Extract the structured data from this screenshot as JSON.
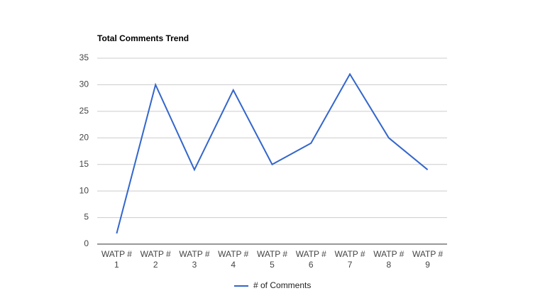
{
  "chart_data": {
    "type": "line",
    "title": "Total Comments Trend",
    "categories": [
      "WATP # 1",
      "WATP # 2",
      "WATP # 3",
      "WATP # 4",
      "WATP # 5",
      "WATP # 6",
      "WATP # 7",
      "WATP # 8",
      "WATP # 9"
    ],
    "series": [
      {
        "name": "# of Comments",
        "color": "#3366cc",
        "values": [
          2,
          30,
          14,
          29,
          15,
          19,
          32,
          20,
          14
        ]
      }
    ],
    "ylim": [
      0,
      35
    ],
    "yticks": [
      0,
      5,
      10,
      15,
      20,
      25,
      30,
      35
    ],
    "grid": true,
    "legend": "bottom"
  }
}
